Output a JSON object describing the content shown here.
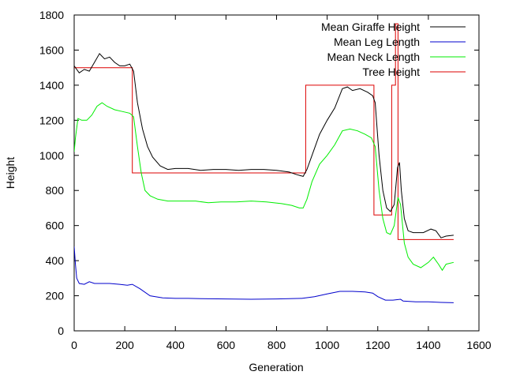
{
  "chart_data": {
    "type": "line",
    "title": "",
    "xlabel": "Generation",
    "ylabel": "Height",
    "xlim": [
      0,
      1600
    ],
    "ylim": [
      0,
      1800
    ],
    "xticks": [
      0,
      200,
      400,
      600,
      800,
      1000,
      1200,
      1400,
      1600
    ],
    "yticks": [
      0,
      200,
      400,
      600,
      800,
      1000,
      1200,
      1400,
      1600,
      1800
    ],
    "grid": false,
    "legend_position": "top-right",
    "series": [
      {
        "name": "Mean Giraffe Height",
        "color": "#000000",
        "points": [
          [
            0,
            1510
          ],
          [
            20,
            1470
          ],
          [
            40,
            1490
          ],
          [
            60,
            1480
          ],
          [
            80,
            1530
          ],
          [
            100,
            1580
          ],
          [
            120,
            1550
          ],
          [
            140,
            1560
          ],
          [
            160,
            1530
          ],
          [
            180,
            1510
          ],
          [
            200,
            1510
          ],
          [
            220,
            1520
          ],
          [
            235,
            1480
          ],
          [
            250,
            1300
          ],
          [
            270,
            1150
          ],
          [
            290,
            1050
          ],
          [
            310,
            990
          ],
          [
            340,
            940
          ],
          [
            370,
            920
          ],
          [
            400,
            925
          ],
          [
            450,
            925
          ],
          [
            500,
            915
          ],
          [
            550,
            920
          ],
          [
            600,
            920
          ],
          [
            650,
            915
          ],
          [
            700,
            920
          ],
          [
            750,
            920
          ],
          [
            800,
            915
          ],
          [
            850,
            905
          ],
          [
            880,
            890
          ],
          [
            905,
            880
          ],
          [
            920,
            920
          ],
          [
            940,
            1000
          ],
          [
            970,
            1120
          ],
          [
            1000,
            1200
          ],
          [
            1030,
            1270
          ],
          [
            1060,
            1380
          ],
          [
            1080,
            1390
          ],
          [
            1100,
            1370
          ],
          [
            1130,
            1380
          ],
          [
            1160,
            1360
          ],
          [
            1180,
            1340
          ],
          [
            1190,
            1300
          ],
          [
            1205,
            1000
          ],
          [
            1220,
            800
          ],
          [
            1235,
            700
          ],
          [
            1250,
            680
          ],
          [
            1265,
            720
          ],
          [
            1278,
            930
          ],
          [
            1286,
            960
          ],
          [
            1293,
            800
          ],
          [
            1305,
            640
          ],
          [
            1320,
            570
          ],
          [
            1340,
            560
          ],
          [
            1380,
            560
          ],
          [
            1410,
            580
          ],
          [
            1430,
            570
          ],
          [
            1450,
            530
          ],
          [
            1470,
            540
          ],
          [
            1500,
            545
          ]
        ]
      },
      {
        "name": "Mean Leg Length",
        "color": "#0000cc",
        "points": [
          [
            0,
            480
          ],
          [
            5,
            380
          ],
          [
            10,
            300
          ],
          [
            20,
            270
          ],
          [
            40,
            265
          ],
          [
            60,
            280
          ],
          [
            80,
            270
          ],
          [
            100,
            270
          ],
          [
            140,
            270
          ],
          [
            180,
            265
          ],
          [
            210,
            260
          ],
          [
            230,
            265
          ],
          [
            260,
            240
          ],
          [
            300,
            200
          ],
          [
            350,
            188
          ],
          [
            400,
            185
          ],
          [
            450,
            185
          ],
          [
            500,
            183
          ],
          [
            600,
            182
          ],
          [
            700,
            180
          ],
          [
            800,
            182
          ],
          [
            900,
            185
          ],
          [
            950,
            195
          ],
          [
            1000,
            210
          ],
          [
            1050,
            225
          ],
          [
            1100,
            225
          ],
          [
            1150,
            222
          ],
          [
            1180,
            215
          ],
          [
            1200,
            195
          ],
          [
            1230,
            175
          ],
          [
            1260,
            175
          ],
          [
            1290,
            180
          ],
          [
            1300,
            170
          ],
          [
            1350,
            165
          ],
          [
            1400,
            165
          ],
          [
            1450,
            162
          ],
          [
            1500,
            160
          ]
        ]
      },
      {
        "name": "Mean Neck Length",
        "color": "#00ee00",
        "points": [
          [
            0,
            1020
          ],
          [
            5,
            1100
          ],
          [
            15,
            1210
          ],
          [
            30,
            1200
          ],
          [
            50,
            1200
          ],
          [
            70,
            1230
          ],
          [
            90,
            1280
          ],
          [
            110,
            1300
          ],
          [
            130,
            1280
          ],
          [
            160,
            1260
          ],
          [
            190,
            1250
          ],
          [
            220,
            1240
          ],
          [
            235,
            1220
          ],
          [
            250,
            1050
          ],
          [
            265,
            900
          ],
          [
            280,
            800
          ],
          [
            300,
            770
          ],
          [
            330,
            750
          ],
          [
            370,
            740
          ],
          [
            420,
            740
          ],
          [
            480,
            740
          ],
          [
            530,
            730
          ],
          [
            580,
            735
          ],
          [
            640,
            735
          ],
          [
            700,
            740
          ],
          [
            760,
            735
          ],
          [
            820,
            725
          ],
          [
            860,
            715
          ],
          [
            890,
            700
          ],
          [
            905,
            700
          ],
          [
            920,
            750
          ],
          [
            940,
            850
          ],
          [
            970,
            950
          ],
          [
            1000,
            1000
          ],
          [
            1030,
            1060
          ],
          [
            1060,
            1140
          ],
          [
            1090,
            1150
          ],
          [
            1120,
            1140
          ],
          [
            1150,
            1120
          ],
          [
            1175,
            1100
          ],
          [
            1190,
            1050
          ],
          [
            1205,
            800
          ],
          [
            1220,
            640
          ],
          [
            1235,
            560
          ],
          [
            1250,
            550
          ],
          [
            1265,
            600
          ],
          [
            1280,
            760
          ],
          [
            1290,
            720
          ],
          [
            1305,
            500
          ],
          [
            1320,
            420
          ],
          [
            1340,
            380
          ],
          [
            1370,
            360
          ],
          [
            1400,
            390
          ],
          [
            1420,
            420
          ],
          [
            1440,
            380
          ],
          [
            1455,
            345
          ],
          [
            1470,
            380
          ],
          [
            1500,
            390
          ]
        ]
      },
      {
        "name": "Tree Height",
        "color": "#dd0000",
        "points": [
          [
            0,
            1500
          ],
          [
            230,
            1500
          ],
          [
            230,
            900
          ],
          [
            915,
            900
          ],
          [
            915,
            1400
          ],
          [
            1185,
            1400
          ],
          [
            1185,
            660
          ],
          [
            1255,
            660
          ],
          [
            1255,
            1400
          ],
          [
            1270,
            1400
          ],
          [
            1270,
            1750
          ],
          [
            1280,
            1750
          ],
          [
            1280,
            520
          ],
          [
            1500,
            520
          ]
        ]
      }
    ]
  }
}
